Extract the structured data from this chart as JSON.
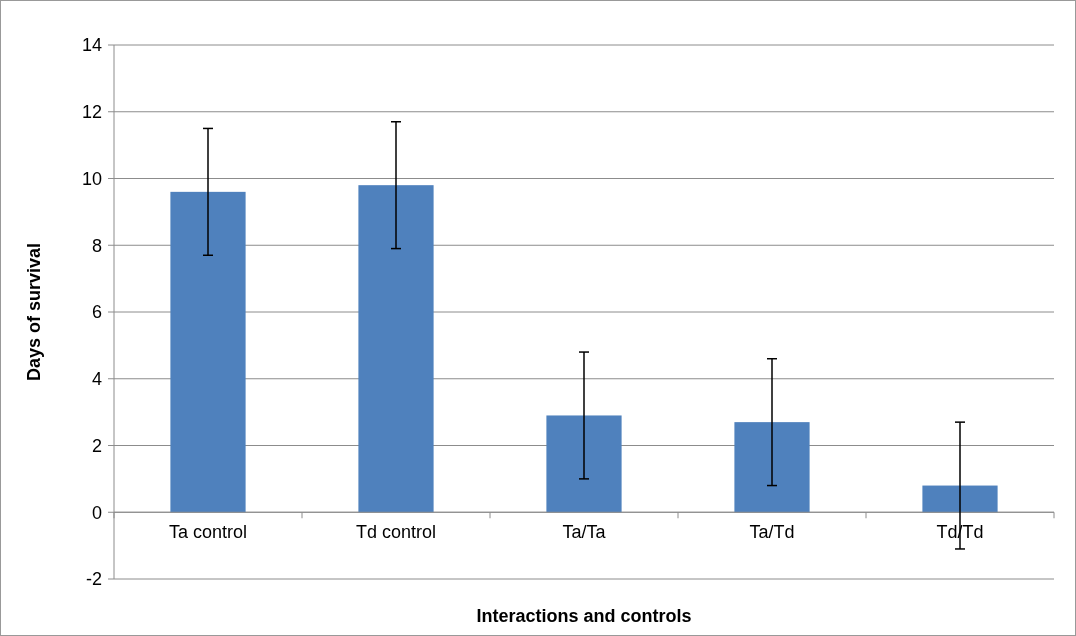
{
  "chart_data": {
    "type": "bar",
    "xlabel": "Interactions  and controls",
    "ylabel": "Days of survival",
    "categories": [
      "Ta control",
      "Td control",
      "Ta/Ta",
      "Ta/Td",
      "Td/Td"
    ],
    "values": [
      9.6,
      9.8,
      2.9,
      2.7,
      0.8
    ],
    "errors": [
      1.9,
      1.9,
      1.9,
      1.9,
      1.9
    ],
    "color": "#4f81bd",
    "ylim": [
      -2,
      14
    ],
    "yticks": [
      -2,
      0,
      2,
      4,
      6,
      8,
      10,
      12,
      14
    ],
    "grid": "y"
  }
}
